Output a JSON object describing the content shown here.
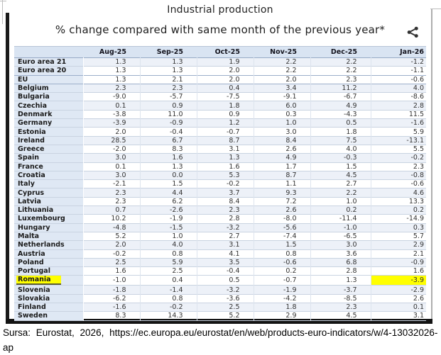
{
  "chart_data": {
    "type": "table",
    "title": "Industrial production",
    "subtitle": "% change compared with same month of the previous year*",
    "columns": [
      "Aug-25",
      "Sep-25",
      "Oct-25",
      "Nov-25",
      "Dec-25",
      "Jan-26"
    ],
    "rows": [
      {
        "label": "Euro area 21",
        "values": [
          "1.3",
          "1.3",
          "1.9",
          "2.2",
          "2.2",
          "-1.2"
        ],
        "shaded": true
      },
      {
        "label": "Euro area 20",
        "values": [
          "1.3",
          "1.3",
          "2.0",
          "2.2",
          "2.2",
          "-1.1"
        ],
        "shaded": false,
        "sep": true
      },
      {
        "label": "EU",
        "values": [
          "1.3",
          "2.1",
          "2.0",
          "2.0",
          "2.3",
          "-0.6"
        ],
        "shaded": false,
        "sep": true
      },
      {
        "label": "Belgium",
        "values": [
          "2.3",
          "2.3",
          "0.4",
          "3.4",
          "11.2",
          "4.0"
        ],
        "shaded": true
      },
      {
        "label": "Bulgaria",
        "values": [
          "-9.0",
          "-5.7",
          "-7.5",
          "-9.1",
          "-6.7",
          "-8.6"
        ],
        "shaded": false
      },
      {
        "label": "Czechia",
        "values": [
          "0.1",
          "0.9",
          "1.8",
          "6.0",
          "4.9",
          "2.8"
        ],
        "shaded": true
      },
      {
        "label": "Denmark",
        "values": [
          "-3.8",
          "11.0",
          "0.9",
          "0.3",
          "-4.3",
          "11.5"
        ],
        "shaded": false
      },
      {
        "label": "Germany",
        "values": [
          "-3.9",
          "-0.9",
          "1.2",
          "1.0",
          "0.5",
          "-1.6"
        ],
        "shaded": true
      },
      {
        "label": "Estonia",
        "values": [
          "2.0",
          "-0.4",
          "-0.7",
          "3.0",
          "1.8",
          "5.9"
        ],
        "shaded": false
      },
      {
        "label": "Ireland",
        "values": [
          "28.5",
          "6.7",
          "8.7",
          "8.4",
          "7.5",
          "-13.1"
        ],
        "shaded": true
      },
      {
        "label": "Greece",
        "values": [
          "-2.0",
          "8.3",
          "3.1",
          "2.6",
          "4.0",
          "5.5"
        ],
        "shaded": false
      },
      {
        "label": "Spain",
        "values": [
          "3.0",
          "1.6",
          "1.3",
          "4.9",
          "-0.3",
          "-0.2"
        ],
        "shaded": true
      },
      {
        "label": "France",
        "values": [
          "0.1",
          "1.3",
          "1.6",
          "1.7",
          "1.5",
          "2.3"
        ],
        "shaded": false
      },
      {
        "label": "Croatia",
        "values": [
          "3.0",
          "0.0",
          "5.3",
          "8.7",
          "4.5",
          "-0.8"
        ],
        "shaded": true
      },
      {
        "label": "Italy",
        "values": [
          "-2.1",
          "1.5",
          "-0.2",
          "1.1",
          "2.7",
          "-0.6"
        ],
        "shaded": false
      },
      {
        "label": "Cyprus",
        "values": [
          "2.3",
          "4.4",
          "3.7",
          "9.3",
          "2.2",
          "4.6"
        ],
        "shaded": true
      },
      {
        "label": "Latvia",
        "values": [
          "2.3",
          "6.2",
          "8.4",
          "7.2",
          "1.0",
          "13.3"
        ],
        "shaded": false
      },
      {
        "label": "Lithuania",
        "values": [
          "0.7",
          "-2.6",
          "2.3",
          "2.6",
          "0.2",
          "0.2"
        ],
        "shaded": true
      },
      {
        "label": "Luxembourg",
        "values": [
          "10.2",
          "-1.9",
          "2.8",
          "-8.0",
          "-11.4",
          "-14.9"
        ],
        "shaded": false
      },
      {
        "label": "Hungary",
        "values": [
          "-4.8",
          "-1.5",
          "-3.2",
          "-5.6",
          "-1.0",
          "0.3"
        ],
        "shaded": true
      },
      {
        "label": "Malta",
        "values": [
          "5.2",
          "1.0",
          "2.7",
          "-7.4",
          "-6.5",
          "5.7"
        ],
        "shaded": false
      },
      {
        "label": "Netherlands",
        "values": [
          "2.0",
          "4.0",
          "3.1",
          "1.5",
          "3.0",
          "2.9"
        ],
        "shaded": true
      },
      {
        "label": "Austria",
        "values": [
          "-0.2",
          "0.8",
          "4.1",
          "0.8",
          "3.6",
          "2.1"
        ],
        "shaded": false
      },
      {
        "label": "Poland",
        "values": [
          "2.5",
          "5.9",
          "3.5",
          "-0.6",
          "6.8",
          "-0.9"
        ],
        "shaded": true
      },
      {
        "label": "Portugal",
        "values": [
          "1.6",
          "2.5",
          "-0.4",
          "0.2",
          "2.8",
          "1.6"
        ],
        "shaded": false
      },
      {
        "label": "Romania",
        "values": [
          "-1.0",
          "0.4",
          "0.5",
          "-0.7",
          "1.3",
          "-3.9"
        ],
        "shaded": false,
        "highlight": true
      },
      {
        "label": "Slovenia",
        "values": [
          "-1.8",
          "-1.4",
          "-3.2",
          "-1.9",
          "-3.7",
          "-2.9"
        ],
        "shaded": true
      },
      {
        "label": "Slovakia",
        "values": [
          "-6.2",
          "0.8",
          "-3.6",
          "-4.2",
          "-8.5",
          "2.6"
        ],
        "shaded": false
      },
      {
        "label": "Finland",
        "values": [
          "-1.6",
          "-0.2",
          "2.5",
          "1.8",
          "2.3",
          "0.1"
        ],
        "shaded": true
      },
      {
        "label": "Sweden",
        "values": [
          "8.3",
          "14.3",
          "5.2",
          "2.9",
          "4.5",
          "3.1"
        ],
        "shaded": false
      }
    ],
    "highlight_note": {
      "row": "Romania",
      "column": "Jan-26",
      "value": "-3.9"
    },
    "layout_hints": {
      "grid": "row-lines",
      "stripes": "alternating",
      "legend": "none"
    }
  },
  "header": {
    "share_icon": "share-nodes"
  },
  "source": {
    "line1": "Sursa: Eurostat, 2026, https://ec.europa.eu/eurostat/en/web/products-euro-indicators/w/4-13032026-",
    "line2": "ap"
  },
  "colors": {
    "header_bg": "#d9e4f2",
    "label_bg": "#dfe8f4",
    "stripe_bg": "#edf1f8",
    "highlight": "#ffff00",
    "frame": "#1a1a1a",
    "row_border": "#c9d3e1"
  }
}
